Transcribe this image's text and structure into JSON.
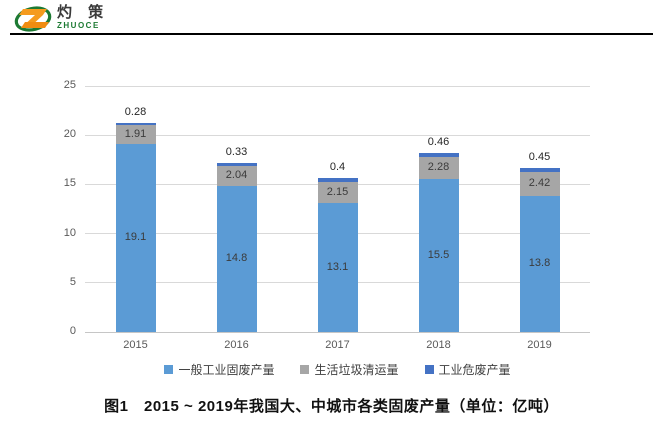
{
  "header": {
    "logo": {
      "brand_cn": "灼 策",
      "brand_en": "ZHUOCE"
    },
    "logo_colors": {
      "ring_green": "#1d7a33",
      "z_orange": "#f59b1e"
    }
  },
  "chart_data": {
    "type": "bar",
    "stacked": true,
    "categories": [
      "2015",
      "2016",
      "2017",
      "2018",
      "2019"
    ],
    "series": [
      {
        "name": "一般工业固废产量",
        "color": "#5b9bd5",
        "values": [
          19.1,
          14.8,
          13.1,
          15.5,
          13.8
        ],
        "labels": [
          "19.1",
          "14.8",
          "13.1",
          "15.5",
          "13.8"
        ]
      },
      {
        "name": "生活垃圾清运量",
        "color": "#a6a6a6",
        "values": [
          1.91,
          2.04,
          2.15,
          2.28,
          2.42
        ],
        "labels": [
          "1.91",
          "2.04",
          "2.15",
          "2.28",
          "2.42"
        ]
      },
      {
        "name": "工业危废产量",
        "color": "#4472c4",
        "values": [
          0.28,
          0.33,
          0.4,
          0.46,
          0.45
        ],
        "labels": [
          "0.28",
          "0.33",
          "0.4",
          "0.46",
          "0.45"
        ]
      }
    ],
    "ylim": [
      0,
      25
    ],
    "yticks": [
      0,
      5,
      10,
      15,
      20,
      25
    ],
    "grid": true,
    "legend_position": "bottom",
    "grid_color": "#d9d9d9",
    "tick_label_color": "#595959"
  },
  "caption": "图1　2015 ~ 2019年我国大、中城市各类固废产量（单位：亿吨）"
}
